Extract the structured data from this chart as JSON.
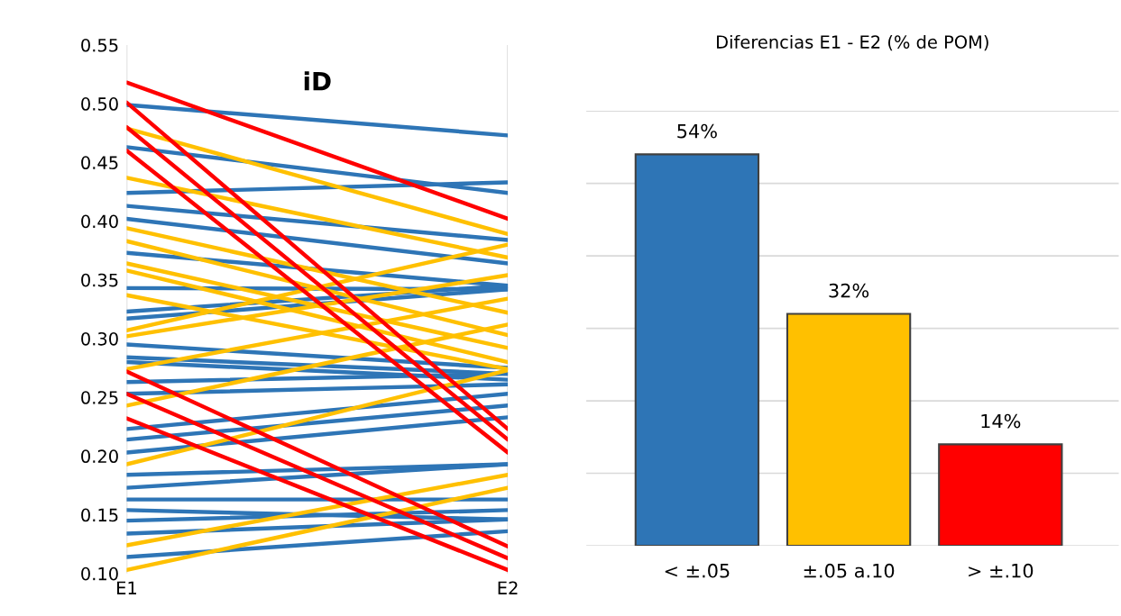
{
  "chart_data": [
    {
      "type": "line",
      "title": "iD",
      "categories": [
        "E1",
        "E2"
      ],
      "ylim": [
        0.1,
        0.55
      ],
      "yticks": [
        {
          "value": 0.1,
          "label": "0.10"
        },
        {
          "value": 0.15,
          "label": "0.15"
        },
        {
          "value": 0.2,
          "label": "0.20"
        },
        {
          "value": 0.25,
          "label": "0.25"
        },
        {
          "value": 0.3,
          "label": "0.30"
        },
        {
          "value": 0.35,
          "label": "0.35"
        },
        {
          "value": 0.4,
          "label": "0.40"
        },
        {
          "value": 0.45,
          "label": "0.45"
        },
        {
          "value": 0.5,
          "label": "0.50"
        },
        {
          "value": 0.55,
          "label": "0.55"
        }
      ],
      "grid": "x",
      "series": [
        {
          "color": "#2e75b6",
          "values": [
            0.499,
            0.473
          ]
        },
        {
          "color": "#2e75b6",
          "values": [
            0.463,
            0.424
          ]
        },
        {
          "color": "#2e75b6",
          "values": [
            0.424,
            0.433
          ]
        },
        {
          "color": "#2e75b6",
          "values": [
            0.413,
            0.384
          ]
        },
        {
          "color": "#2e75b6",
          "values": [
            0.402,
            0.364
          ]
        },
        {
          "color": "#2e75b6",
          "values": [
            0.373,
            0.345
          ]
        },
        {
          "color": "#2e75b6",
          "values": [
            0.343,
            0.342
          ]
        },
        {
          "color": "#2e75b6",
          "values": [
            0.323,
            0.345
          ]
        },
        {
          "color": "#2e75b6",
          "values": [
            0.317,
            0.342
          ]
        },
        {
          "color": "#2e75b6",
          "values": [
            0.295,
            0.275
          ]
        },
        {
          "color": "#2e75b6",
          "values": [
            0.284,
            0.27
          ]
        },
        {
          "color": "#2e75b6",
          "values": [
            0.28,
            0.265
          ]
        },
        {
          "color": "#2e75b6",
          "values": [
            0.263,
            0.27
          ]
        },
        {
          "color": "#2e75b6",
          "values": [
            0.253,
            0.261
          ]
        },
        {
          "color": "#2e75b6",
          "values": [
            0.223,
            0.253
          ]
        },
        {
          "color": "#2e75b6",
          "values": [
            0.214,
            0.243
          ]
        },
        {
          "color": "#2e75b6",
          "values": [
            0.203,
            0.233
          ]
        },
        {
          "color": "#2e75b6",
          "values": [
            0.184,
            0.193
          ]
        },
        {
          "color": "#2e75b6",
          "values": [
            0.173,
            0.193
          ]
        },
        {
          "color": "#2e75b6",
          "values": [
            0.163,
            0.163
          ]
        },
        {
          "color": "#2e75b6",
          "values": [
            0.154,
            0.146
          ]
        },
        {
          "color": "#2e75b6",
          "values": [
            0.145,
            0.154
          ]
        },
        {
          "color": "#2e75b6",
          "values": [
            0.134,
            0.146
          ]
        },
        {
          "color": "#2e75b6",
          "values": [
            0.114,
            0.136
          ]
        },
        {
          "color": "#ffc000",
          "values": [
            0.479,
            0.389
          ]
        },
        {
          "color": "#ffc000",
          "values": [
            0.437,
            0.369
          ]
        },
        {
          "color": "#ffc000",
          "values": [
            0.394,
            0.322
          ]
        },
        {
          "color": "#ffc000",
          "values": [
            0.383,
            0.303
          ]
        },
        {
          "color": "#ffc000",
          "values": [
            0.364,
            0.292
          ]
        },
        {
          "color": "#ffc000",
          "values": [
            0.358,
            0.28
          ]
        },
        {
          "color": "#ffc000",
          "values": [
            0.337,
            0.274
          ]
        },
        {
          "color": "#ffc000",
          "values": [
            0.307,
            0.38
          ]
        },
        {
          "color": "#ffc000",
          "values": [
            0.302,
            0.354
          ]
        },
        {
          "color": "#ffc000",
          "values": [
            0.274,
            0.334
          ]
        },
        {
          "color": "#ffc000",
          "values": [
            0.243,
            0.312
          ]
        },
        {
          "color": "#ffc000",
          "values": [
            0.193,
            0.273
          ]
        },
        {
          "color": "#ffc000",
          "values": [
            0.124,
            0.184
          ]
        },
        {
          "color": "#ffc000",
          "values": [
            0.103,
            0.173
          ]
        },
        {
          "color": "#ff0000",
          "values": [
            0.518,
            0.402
          ]
        },
        {
          "color": "#ff0000",
          "values": [
            0.501,
            0.223
          ]
        },
        {
          "color": "#ff0000",
          "values": [
            0.48,
            0.214
          ]
        },
        {
          "color": "#ff0000",
          "values": [
            0.46,
            0.203
          ]
        },
        {
          "color": "#ff0000",
          "values": [
            0.272,
            0.123
          ]
        },
        {
          "color": "#ff0000",
          "values": [
            0.253,
            0.113
          ]
        },
        {
          "color": "#ff0000",
          "values": [
            0.232,
            0.103
          ]
        }
      ]
    },
    {
      "type": "bar",
      "title": "Diferencias E1 - E2 (% de POM)",
      "categories": [
        "< ±.05",
        "±.05 a.10",
        "> ±.10"
      ],
      "values": [
        54,
        32,
        14
      ],
      "colors": [
        "#2e75b6",
        "#ffc000",
        "#ff0000"
      ],
      "value_labels": [
        "54%",
        "32%",
        "14%"
      ],
      "ylim": [
        0,
        60
      ],
      "yticks": [
        {
          "value": 0,
          "label": null
        },
        {
          "value": 10,
          "label": null
        },
        {
          "value": 20,
          "label": null
        },
        {
          "value": 30,
          "label": null
        },
        {
          "value": 40,
          "label": null
        },
        {
          "value": 50,
          "label": null
        },
        {
          "value": 60,
          "label": null
        }
      ],
      "grid": "y",
      "tick_labels": "x"
    }
  ]
}
